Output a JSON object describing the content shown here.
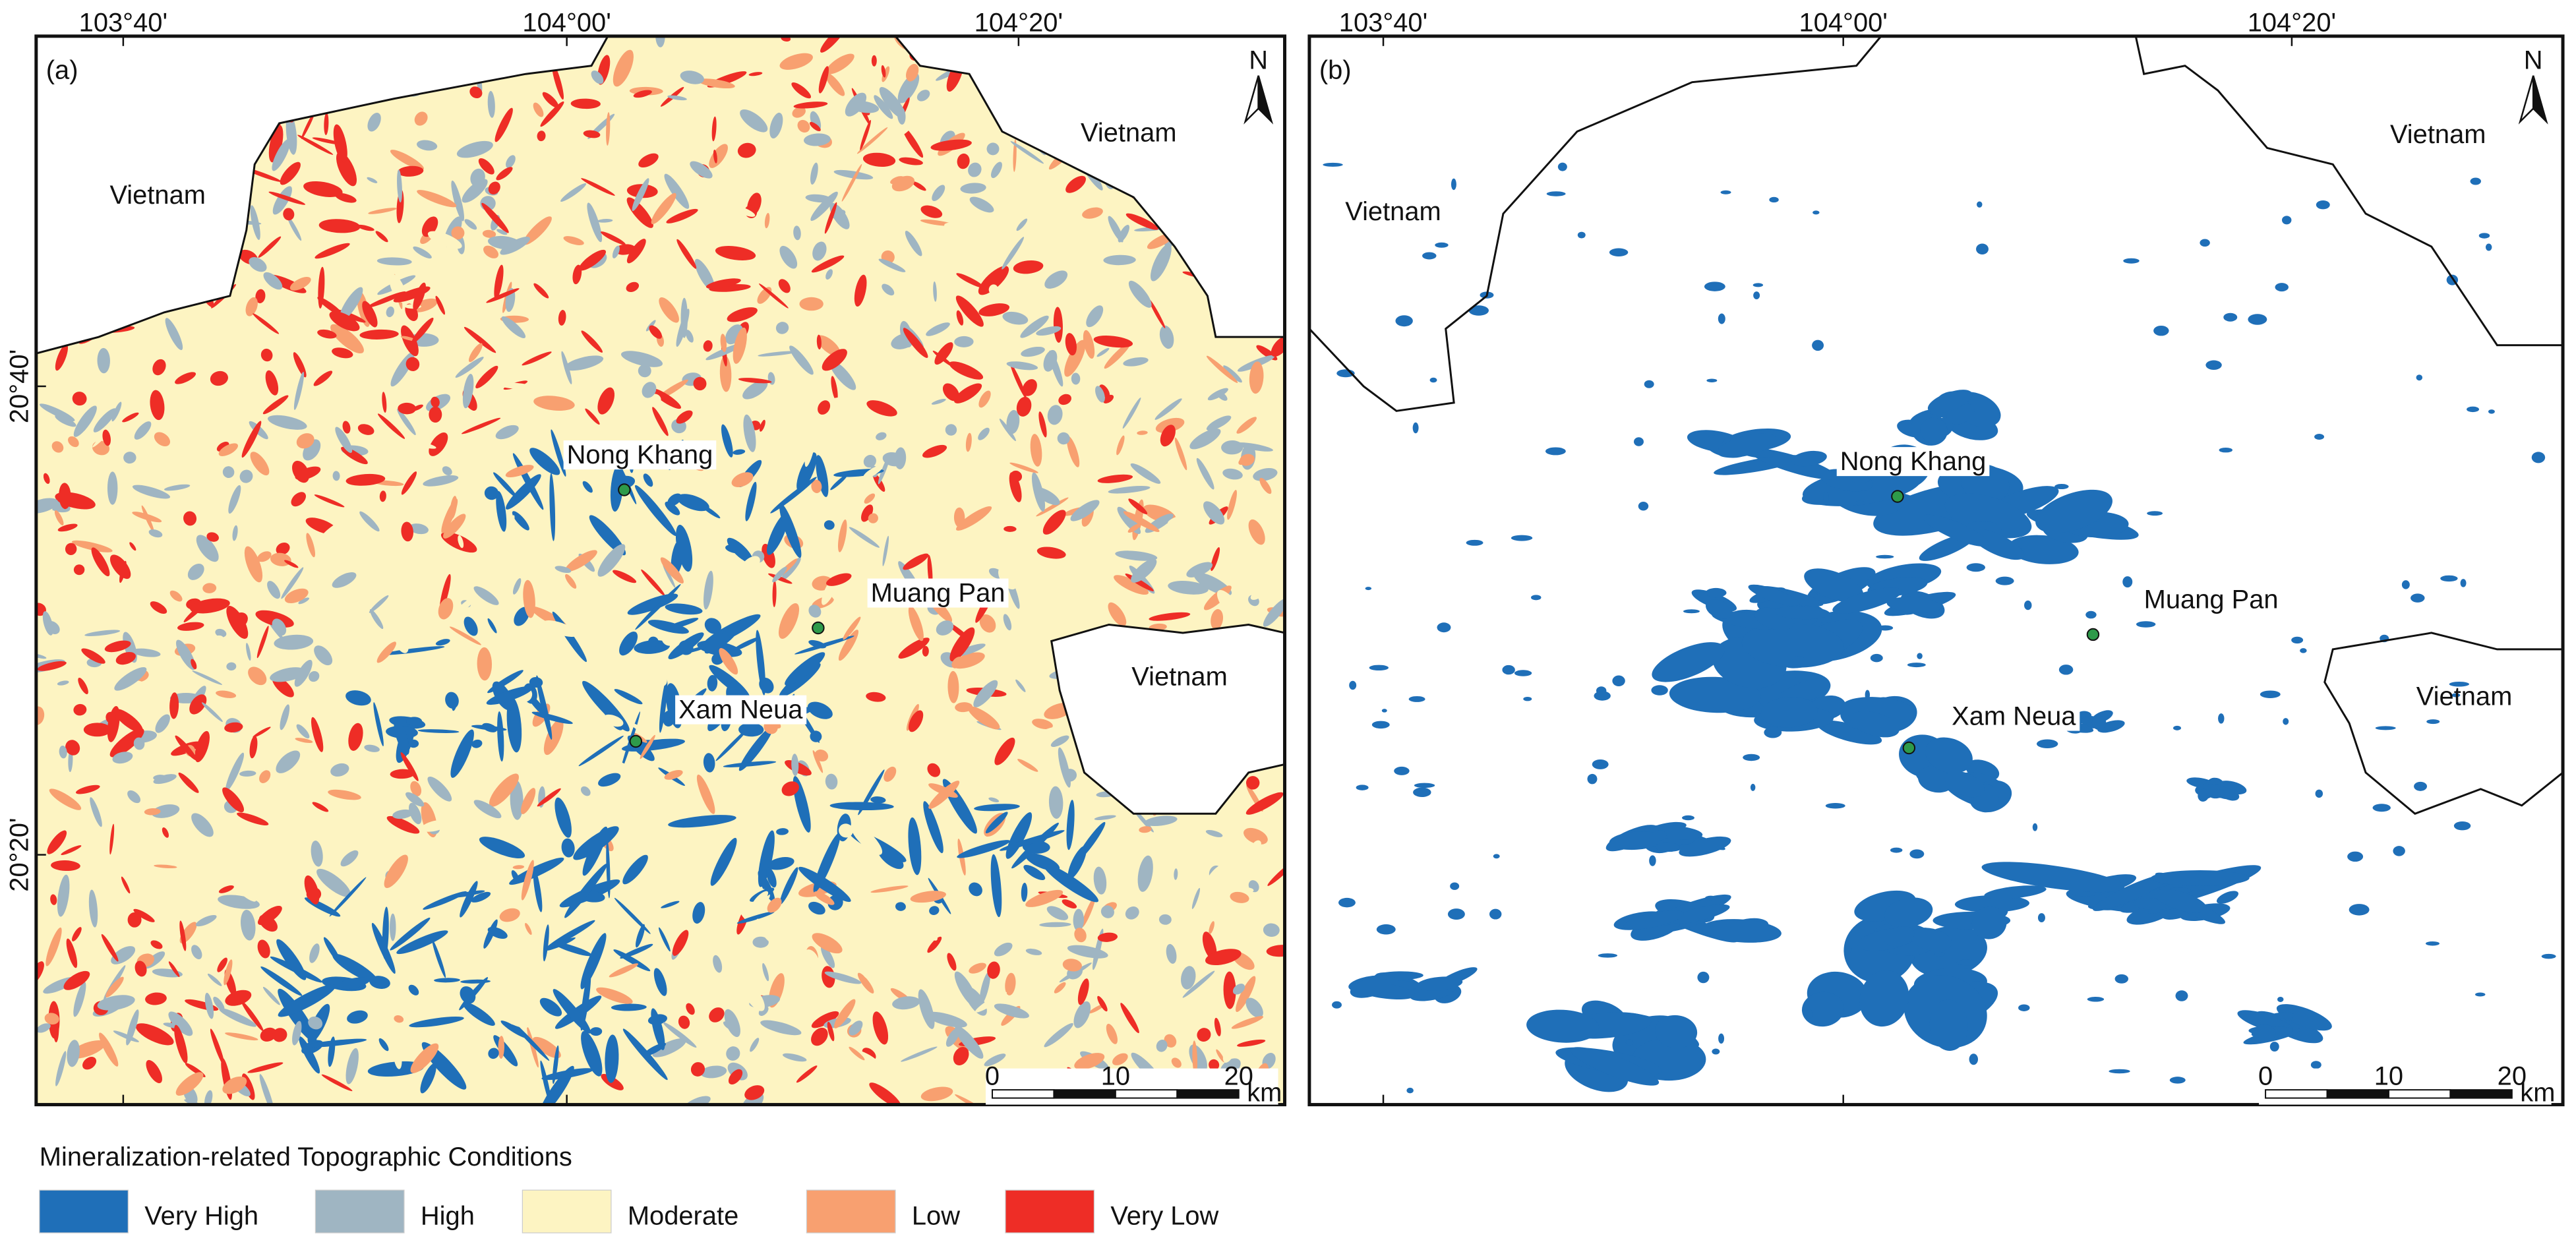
{
  "panels": [
    {
      "label": "(a)",
      "lon_labels": [
        "103°40'",
        "104°00'",
        "104°20'"
      ],
      "lat_labels": [
        "20°40'",
        "20°20'"
      ],
      "north": "N",
      "countries": [
        "Vietnam",
        "Vietnam",
        "Vietnam"
      ],
      "places": [
        "Nong Khang",
        "Muang Pan",
        "Xam Neua"
      ],
      "scale": {
        "ticks": [
          0,
          10,
          20
        ],
        "unit": "km"
      }
    },
    {
      "label": "(b)",
      "lon_labels": [
        "103°40'",
        "104°00'",
        "104°20'"
      ],
      "north": "N",
      "countries": [
        "Vietnam",
        "Vietnam",
        "Vietnam"
      ],
      "places": [
        "Nong Khang",
        "Muang Pan",
        "Xam Neua"
      ],
      "scale": {
        "ticks": [
          0,
          10,
          20
        ],
        "unit": "km"
      }
    }
  ],
  "legend": {
    "title": "Mineralization-related Topographic Conditions",
    "items": [
      {
        "label": "Very High",
        "color": "#1f6fb8"
      },
      {
        "label": "High",
        "color": "#9fb5c2"
      },
      {
        "label": "Moderate",
        "color": "#fdf4c2"
      },
      {
        "label": "Low",
        "color": "#f8a070"
      },
      {
        "label": "Very Low",
        "color": "#ee2d26"
      }
    ]
  }
}
